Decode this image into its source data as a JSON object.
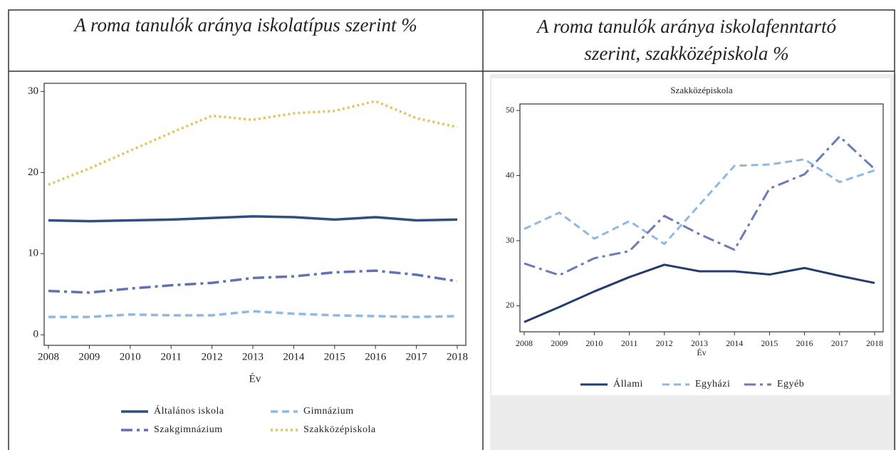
{
  "headers": [
    "A roma tanulók aránya iskolatípus szerint %",
    "A roma tanulók aránya iskolafenntartó szerint, szakközépiskola %"
  ],
  "chart_data": [
    {
      "type": "line",
      "xlabel": "Év",
      "categories": [
        "2008",
        "2009",
        "2010",
        "2011",
        "2012",
        "2013",
        "2014",
        "2015",
        "2016",
        "2017",
        "2018"
      ],
      "ylim": [
        -1.3,
        31
      ],
      "yticks": [
        0,
        10,
        20,
        30
      ],
      "series": [
        {
          "name": "Általános iskola",
          "color": "#2f4f7f",
          "style": "solid",
          "values": [
            14.1,
            14.0,
            14.1,
            14.2,
            14.4,
            14.6,
            14.5,
            14.2,
            14.5,
            14.1,
            14.2
          ]
        },
        {
          "name": "Gimnázium",
          "color": "#8fb9e2",
          "style": "dashed",
          "values": [
            2.2,
            2.2,
            2.5,
            2.4,
            2.4,
            2.9,
            2.6,
            2.4,
            2.3,
            2.2,
            2.3
          ]
        },
        {
          "name": "Szakgimnázium",
          "color": "#5f73b3",
          "style": "longdash",
          "values": [
            5.4,
            5.2,
            5.7,
            6.1,
            6.4,
            7.0,
            7.2,
            7.7,
            7.9,
            7.4,
            6.6
          ]
        },
        {
          "name": "Szakközépiskola",
          "color": "#e6c15f",
          "style": "dotted",
          "values": [
            18.5,
            20.5,
            22.7,
            24.9,
            27.0,
            26.5,
            27.3,
            27.6,
            28.8,
            26.7,
            25.6
          ]
        }
      ]
    },
    {
      "type": "line",
      "title": "Szakközépiskola",
      "xlabel": "Év",
      "categories": [
        "2008",
        "2009",
        "2010",
        "2011",
        "2012",
        "2013",
        "2014",
        "2015",
        "2016",
        "2017",
        "2018"
      ],
      "ylim": [
        16,
        51
      ],
      "yticks": [
        20,
        30,
        40,
        50
      ],
      "series": [
        {
          "name": "Állami",
          "color": "#213d6b",
          "style": "solid",
          "values": [
            17.5,
            19.8,
            22.2,
            24.4,
            26.3,
            25.3,
            25.3,
            24.8,
            25.8,
            24.6,
            23.5
          ]
        },
        {
          "name": "Egyházi",
          "color": "#8fb9e2",
          "style": "dashed",
          "values": [
            31.8,
            34.3,
            30.3,
            33.0,
            29.5,
            35.5,
            41.5,
            41.7,
            42.5,
            39.0,
            40.8
          ]
        },
        {
          "name": "Egyéb",
          "color": "#6b7bb9",
          "style": "longdash",
          "values": [
            26.5,
            24.7,
            27.3,
            28.4,
            33.8,
            31.0,
            28.6,
            38.0,
            40.2,
            46.0,
            41.0
          ]
        }
      ]
    }
  ]
}
